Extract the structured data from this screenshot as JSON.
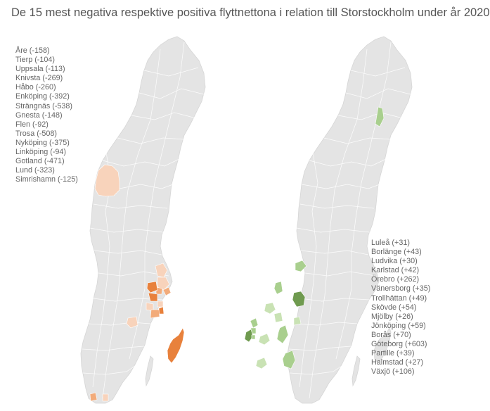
{
  "title": "De 15 mest negativa respektive positiva flyttnettona i relation till Storstockholm under år 2020",
  "colors": {
    "land": "#e4e4e4",
    "border": "#ffffff",
    "negative_dark": "#e8813c",
    "negative_mid": "#f2ab7a",
    "negative_light": "#f8d3bb",
    "positive_dark": "#6f9a4f",
    "positive_mid": "#a9cf8e",
    "positive_light": "#c9e2b4",
    "text": "#666666"
  },
  "negative_list": [
    {
      "municipality": "Åre",
      "net": -158,
      "label": "Åre (-158)"
    },
    {
      "municipality": "Tierp",
      "net": -104,
      "label": "Tierp (-104)"
    },
    {
      "municipality": "Uppsala",
      "net": -113,
      "label": "Uppsala (-113)"
    },
    {
      "municipality": "Knivsta",
      "net": -269,
      "label": "Knivsta (-269)"
    },
    {
      "municipality": "Håbo",
      "net": -260,
      "label": "Håbo (-260)"
    },
    {
      "municipality": "Enköping",
      "net": -392,
      "label": "Enköping (-392)"
    },
    {
      "municipality": "Strängnäs",
      "net": -538,
      "label": "Strängnäs (-538)"
    },
    {
      "municipality": "Gnesta",
      "net": -148,
      "label": "Gnesta (-148)"
    },
    {
      "municipality": "Flen",
      "net": -92,
      "label": "Flen (-92)"
    },
    {
      "municipality": "Trosa",
      "net": -508,
      "label": "Trosa (-508)"
    },
    {
      "municipality": "Nyköping",
      "net": -375,
      "label": "Nyköping (-375)"
    },
    {
      "municipality": "Linköping",
      "net": -94,
      "label": "Linköping (-94)"
    },
    {
      "municipality": "Gotland",
      "net": -471,
      "label": "Gotland (-471)"
    },
    {
      "municipality": "Lund",
      "net": -323,
      "label": "Lund (-323)"
    },
    {
      "municipality": "Simrishamn",
      "net": -125,
      "label": "Simrishamn (-125)"
    }
  ],
  "positive_list": [
    {
      "municipality": "Luleå",
      "net": 31,
      "label": "Luleå (+31)"
    },
    {
      "municipality": "Borlänge",
      "net": 43,
      "label": "Borlänge (+43)"
    },
    {
      "municipality": "Ludvika",
      "net": 30,
      "label": "Ludvika (+30)"
    },
    {
      "municipality": "Karlstad",
      "net": 42,
      "label": "Karlstad (+42)"
    },
    {
      "municipality": "Örebro",
      "net": 262,
      "label": "Örebro (+262)"
    },
    {
      "municipality": "Vänersborg",
      "net": 35,
      "label": "Vänersborg (+35)"
    },
    {
      "municipality": "Trollhättan",
      "net": 49,
      "label": "Trollhättan (+49)"
    },
    {
      "municipality": "Skövde",
      "net": 54,
      "label": "Skövde (+54)"
    },
    {
      "municipality": "Mjölby",
      "net": 26,
      "label": "Mjölby (+26)"
    },
    {
      "municipality": "Jönköping",
      "net": 59,
      "label": "Jönköping (+59)"
    },
    {
      "municipality": "Borås",
      "net": 70,
      "label": "Borås (+70)"
    },
    {
      "municipality": "Göteborg",
      "net": 603,
      "label": "Göteborg (+603)"
    },
    {
      "municipality": "Partille",
      "net": 39,
      "label": "Partille (+39)"
    },
    {
      "municipality": "Halmstad",
      "net": 27,
      "label": "Halmstad (+27)"
    },
    {
      "municipality": "Växjö",
      "net": 106,
      "label": "Växjö (+106)"
    }
  ]
}
